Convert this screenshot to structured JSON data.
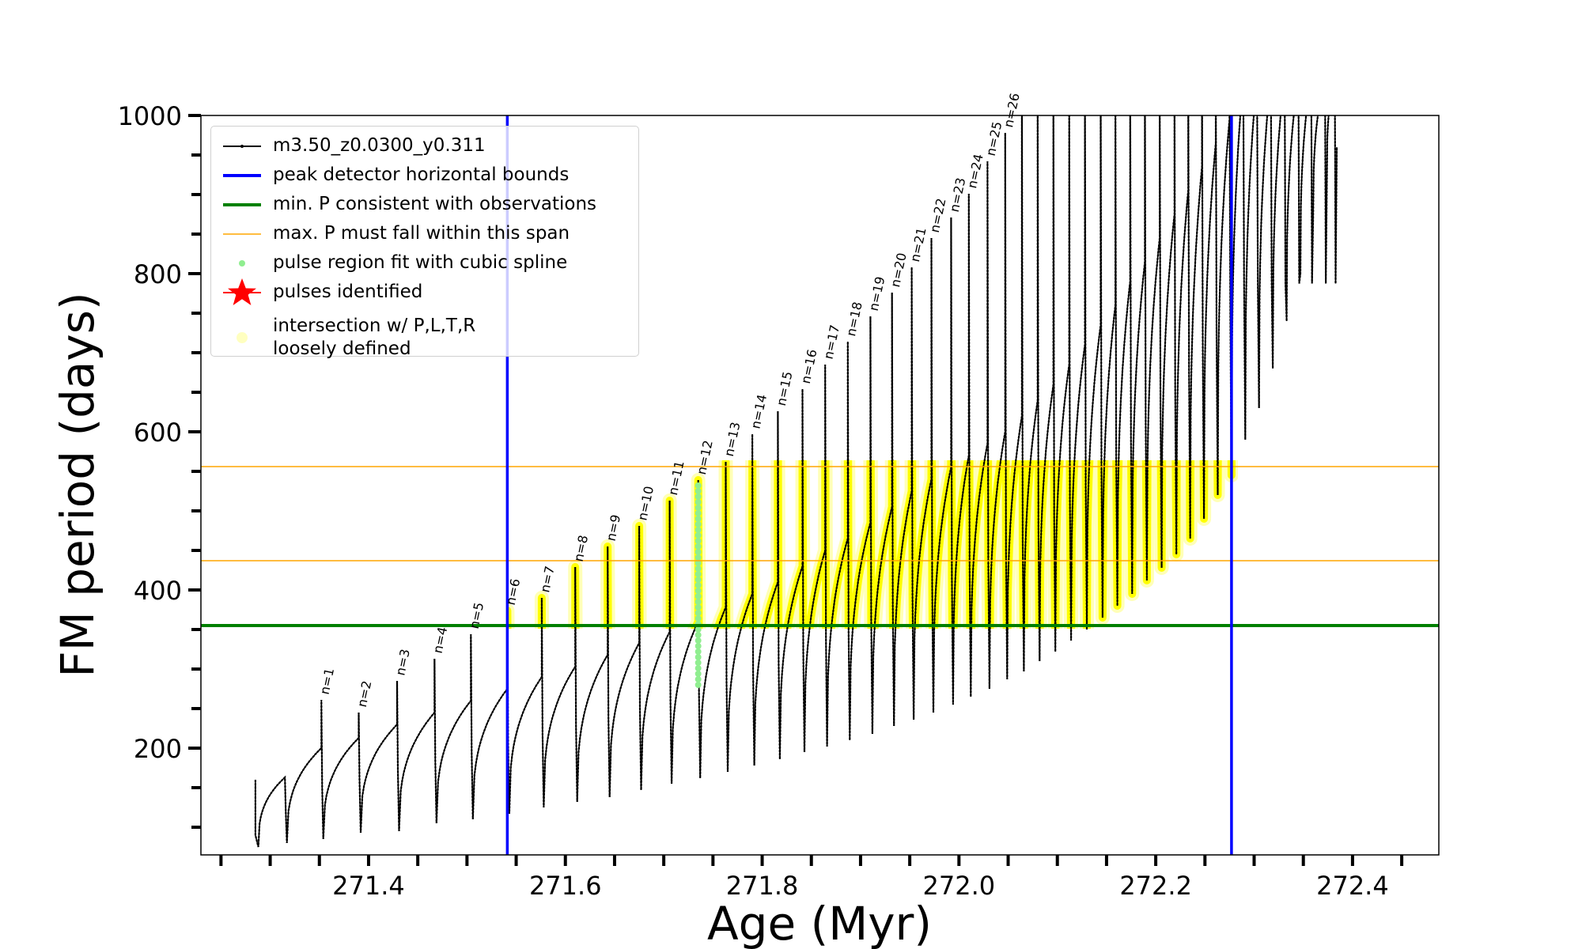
{
  "chart_data": {
    "type": "line",
    "xlabel": "Age (Myr)",
    "ylabel": "FM period (days)",
    "xlim": [
      271.2296,
      272.4877
    ],
    "ylim": [
      65,
      1000
    ],
    "xticks": [
      271.4,
      271.6,
      271.8,
      272.0,
      272.2,
      272.4
    ],
    "xtick_labels": [
      "271.4",
      "271.6",
      "271.8",
      "272.0",
      "272.2",
      "272.4"
    ],
    "yticks": [
      200,
      400,
      600,
      800,
      1000
    ],
    "ytick_labels": [
      "200",
      "400",
      "600",
      "800",
      "1000"
    ],
    "grid": false,
    "legend_position": "top-left",
    "legend": [
      {
        "label": "m3.50_z0.0300_y0.311",
        "marker": "line-dot",
        "color": "#000000"
      },
      {
        "label": "peak detector horizontal bounds",
        "marker": "line",
        "color": "#0000ff"
      },
      {
        "label": "min. P consistent with observations",
        "marker": "line",
        "color": "#008000"
      },
      {
        "label": "max. P must fall within this span",
        "marker": "thin-line",
        "color": "#ffa500"
      },
      {
        "label": "pulse region fit with cubic spline",
        "marker": "dot",
        "color": "#90ee90"
      },
      {
        "label": "pulses identified",
        "marker": "star",
        "color": "#ff0000"
      },
      {
        "label": "intersection w/ P,L,T,R\nloosely defined",
        "label_lines": [
          "intersection w/ P,L,T,R",
          "loosely defined"
        ],
        "marker": "circle",
        "color": "#ffffc0"
      }
    ],
    "vertical_bounds_age": [
      271.541,
      272.277
    ],
    "min_period_line": 355,
    "max_period_span": [
      437,
      556
    ],
    "spline_fit_pulse": {
      "age": 271.735,
      "period_range": [
        280,
        535
      ]
    },
    "start": {
      "age": 271.285,
      "period": 160,
      "min": 75
    },
    "pulses": [
      {
        "label": "",
        "age": 271.315,
        "qmax": 163,
        "peak": 163,
        "min": 80
      },
      {
        "label": "n=1",
        "age": 271.352,
        "qmax": 200,
        "peak": 261,
        "min": 85
      },
      {
        "label": "n=2",
        "age": 271.39,
        "qmax": 213,
        "peak": 245,
        "min": 93
      },
      {
        "label": "n=3",
        "age": 271.429,
        "qmax": 230,
        "peak": 285,
        "min": 95
      },
      {
        "label": "n=4",
        "age": 271.467,
        "qmax": 245,
        "peak": 313,
        "min": 105
      },
      {
        "label": "n=5",
        "age": 271.504,
        "qmax": 260,
        "peak": 344,
        "min": 110
      },
      {
        "label": "n=6",
        "age": 271.541,
        "qmax": 275,
        "peak": 374,
        "min": 117
      },
      {
        "label": "n=7",
        "age": 271.576,
        "qmax": 290,
        "peak": 390,
        "min": 125
      },
      {
        "label": "n=8",
        "age": 271.61,
        "qmax": 303,
        "peak": 429,
        "min": 132
      },
      {
        "label": "n=9",
        "age": 271.643,
        "qmax": 318,
        "peak": 455,
        "min": 138
      },
      {
        "label": "n=10",
        "age": 271.675,
        "qmax": 333,
        "peak": 481,
        "min": 147
      },
      {
        "label": "n=11",
        "age": 271.706,
        "qmax": 347,
        "peak": 513,
        "min": 155
      },
      {
        "label": "n=12",
        "age": 271.735,
        "qmax": 360,
        "peak": 539,
        "min": 162
      },
      {
        "label": "n=13",
        "age": 271.763,
        "qmax": 378,
        "peak": 562,
        "min": 170
      },
      {
        "label": "n=14",
        "age": 271.79,
        "qmax": 395,
        "peak": 597,
        "min": 178
      },
      {
        "label": "n=15",
        "age": 271.816,
        "qmax": 410,
        "peak": 626,
        "min": 186
      },
      {
        "label": "n=16",
        "age": 271.841,
        "qmax": 430,
        "peak": 654,
        "min": 195
      },
      {
        "label": "n=17",
        "age": 271.864,
        "qmax": 450,
        "peak": 685,
        "min": 202
      },
      {
        "label": "n=18",
        "age": 271.887,
        "qmax": 465,
        "peak": 714,
        "min": 210
      },
      {
        "label": "n=19",
        "age": 271.91,
        "qmax": 485,
        "peak": 746,
        "min": 218
      },
      {
        "label": "n=20",
        "age": 271.932,
        "qmax": 505,
        "peak": 776,
        "min": 228
      },
      {
        "label": "n=21",
        "age": 271.952,
        "qmax": 525,
        "peak": 808,
        "min": 236
      },
      {
        "label": "n=22",
        "age": 271.972,
        "qmax": 540,
        "peak": 845,
        "min": 245
      },
      {
        "label": "n=23",
        "age": 271.992,
        "qmax": 555,
        "peak": 871,
        "min": 255
      },
      {
        "label": "n=24",
        "age": 272.01,
        "qmax": 570,
        "peak": 901,
        "min": 265
      },
      {
        "label": "n=25",
        "age": 272.029,
        "qmax": 585,
        "peak": 942,
        "min": 275
      },
      {
        "label": "n=26",
        "age": 272.047,
        "qmax": 600,
        "peak": 978,
        "min": 287
      },
      {
        "label": "",
        "age": 272.064,
        "qmax": 620,
        "peak": 1050,
        "min": 297
      },
      {
        "label": "",
        "age": 272.08,
        "qmax": 640,
        "peak": 1050,
        "min": 310
      },
      {
        "label": "",
        "age": 272.096,
        "qmax": 660,
        "peak": 1050,
        "min": 322
      },
      {
        "label": "",
        "age": 272.112,
        "qmax": 685,
        "peak": 1050,
        "min": 336
      },
      {
        "label": "",
        "age": 272.128,
        "qmax": 710,
        "peak": 1050,
        "min": 350
      },
      {
        "label": "",
        "age": 272.144,
        "qmax": 735,
        "peak": 1050,
        "min": 365
      },
      {
        "label": "",
        "age": 272.159,
        "qmax": 760,
        "peak": 1050,
        "min": 380
      },
      {
        "label": "",
        "age": 272.174,
        "qmax": 790,
        "peak": 1050,
        "min": 395
      },
      {
        "label": "",
        "age": 272.189,
        "qmax": 815,
        "peak": 1050,
        "min": 412
      },
      {
        "label": "",
        "age": 272.204,
        "qmax": 845,
        "peak": 1050,
        "min": 428
      },
      {
        "label": "",
        "age": 272.219,
        "qmax": 875,
        "peak": 1050,
        "min": 445
      },
      {
        "label": "",
        "age": 272.233,
        "qmax": 905,
        "peak": 1050,
        "min": 465
      },
      {
        "label": "",
        "age": 272.247,
        "qmax": 935,
        "peak": 1050,
        "min": 490
      },
      {
        "label": "",
        "age": 272.261,
        "qmax": 965,
        "peak": 1050,
        "min": 520
      },
      {
        "label": "",
        "age": 272.275,
        "qmax": 995,
        "peak": 1050,
        "min": 545
      },
      {
        "label": "",
        "age": 272.289,
        "qmax": 1050,
        "peak": 1050,
        "min": 590
      },
      {
        "label": "",
        "age": 272.303,
        "qmax": 1050,
        "peak": 1050,
        "min": 630
      },
      {
        "label": "",
        "age": 272.317,
        "qmax": 1050,
        "peak": 1050,
        "min": 680
      },
      {
        "label": "",
        "age": 272.331,
        "qmax": 1050,
        "peak": 1050,
        "min": 740
      },
      {
        "label": "",
        "age": 272.345,
        "qmax": 1050,
        "peak": 1050,
        "min": 800
      },
      {
        "label": "",
        "age": 272.358,
        "qmax": 1050,
        "peak": 1050,
        "min": 870
      },
      {
        "label": "",
        "age": 272.372,
        "qmax": 1050,
        "peak": 1050,
        "min": 930
      },
      {
        "label": "",
        "age": 272.382,
        "qmax": 1050,
        "peak": 1050,
        "min": 960
      }
    ]
  }
}
